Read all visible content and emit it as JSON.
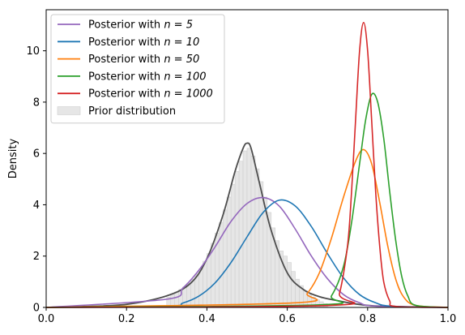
{
  "chart_data": {
    "type": "line",
    "title": "",
    "xlabel": "",
    "ylabel": "Density",
    "xlim": [
      0.0,
      1.0
    ],
    "ylim": [
      0,
      11.6
    ],
    "x_ticks": [
      "0.0",
      "0.2",
      "0.4",
      "0.6",
      "0.8",
      "1.0"
    ],
    "y_ticks": [
      "0",
      "2",
      "4",
      "6",
      "8",
      "10"
    ],
    "grid": false,
    "legend_position": "top-left",
    "series": [
      {
        "name": "Posterior with n = 5",
        "legend_prefix": "Posterior with ",
        "legend_math": "n = 5",
        "color": "#9467bd",
        "x": [
          0.3,
          0.34,
          0.38,
          0.42,
          0.46,
          0.5,
          0.54,
          0.58,
          0.62,
          0.66,
          0.7,
          0.74,
          0.78,
          0.82
        ],
        "y": [
          0.32,
          0.75,
          1.45,
          2.35,
          3.35,
          4.05,
          4.28,
          3.95,
          3.05,
          2.0,
          1.12,
          0.5,
          0.18,
          0.05
        ]
      },
      {
        "name": "Posterior with n = 10",
        "legend_prefix": "Posterior with ",
        "legend_math": "n = 10",
        "color": "#1f77b4",
        "x": [
          0.3,
          0.34,
          0.38,
          0.42,
          0.46,
          0.5,
          0.54,
          0.58,
          0.62,
          0.66,
          0.7,
          0.74,
          0.78,
          0.82,
          0.86
        ],
        "y": [
          0.05,
          0.17,
          0.44,
          0.95,
          1.75,
          2.75,
          3.7,
          4.18,
          3.95,
          3.15,
          2.1,
          1.15,
          0.5,
          0.18,
          0.05
        ]
      },
      {
        "name": "Posterior with n = 50",
        "legend_prefix": "Posterior with ",
        "legend_math": "n = 50",
        "color": "#ff7f0e",
        "x": [
          0.62,
          0.65,
          0.68,
          0.71,
          0.74,
          0.77,
          0.79,
          0.81,
          0.83,
          0.85,
          0.87,
          0.89,
          0.92
        ],
        "y": [
          0.18,
          0.55,
          1.35,
          2.7,
          4.3,
          5.7,
          6.15,
          5.6,
          4.1,
          2.4,
          1.1,
          0.4,
          0.08
        ]
      },
      {
        "name": "Posterior with n = 100",
        "legend_prefix": "Posterior with ",
        "legend_math": "n = 100",
        "color": "#2ca02c",
        "x": [
          0.68,
          0.71,
          0.74,
          0.76,
          0.78,
          0.795,
          0.81,
          0.825,
          0.84,
          0.855,
          0.87,
          0.885,
          0.9,
          0.92
        ],
        "y": [
          0.1,
          0.45,
          1.6,
          3.3,
          5.6,
          7.3,
          8.3,
          8.0,
          6.6,
          4.5,
          2.6,
          1.2,
          0.45,
          0.08
        ]
      },
      {
        "name": "Posterior with n = 1000",
        "legend_prefix": "Posterior with ",
        "legend_math": "n = 1000",
        "color": "#d62728",
        "x": [
          0.71,
          0.73,
          0.75,
          0.76,
          0.77,
          0.78,
          0.79,
          0.8,
          0.81,
          0.82,
          0.83,
          0.84,
          0.855,
          0.87
        ],
        "y": [
          0.08,
          0.55,
          2.4,
          4.5,
          7.3,
          10.0,
          11.1,
          10.0,
          7.3,
          4.5,
          2.4,
          1.0,
          0.25,
          0.04
        ]
      }
    ],
    "prior_kde": {
      "color": "#4d4d4d",
      "x": [
        0.0,
        0.1,
        0.2,
        0.3,
        0.36,
        0.4,
        0.44,
        0.47,
        0.49,
        0.5,
        0.51,
        0.53,
        0.56,
        0.6,
        0.64,
        0.68,
        0.72,
        0.76,
        0.8,
        0.85,
        0.9,
        1.0
      ],
      "y": [
        0.0,
        0.04,
        0.12,
        0.45,
        0.95,
        1.9,
        3.6,
        5.3,
        6.2,
        6.4,
        6.2,
        4.9,
        3.0,
        1.35,
        0.7,
        0.42,
        0.28,
        0.16,
        0.08,
        0.04,
        0.02,
        0.0
      ]
    },
    "prior_histogram": {
      "name": "Prior distribution",
      "color": "#e6e6e6",
      "edge_color": "#cfcfcf",
      "bin_width": 0.01,
      "bins": [
        {
          "x": 0.3,
          "y": 0.4
        },
        {
          "x": 0.31,
          "y": 0.5
        },
        {
          "x": 0.32,
          "y": 0.6
        },
        {
          "x": 0.33,
          "y": 0.7
        },
        {
          "x": 0.34,
          "y": 0.8
        },
        {
          "x": 0.35,
          "y": 0.95
        },
        {
          "x": 0.36,
          "y": 1.1
        },
        {
          "x": 0.37,
          "y": 1.3
        },
        {
          "x": 0.38,
          "y": 1.5
        },
        {
          "x": 0.39,
          "y": 1.8
        },
        {
          "x": 0.4,
          "y": 2.1
        },
        {
          "x": 0.41,
          "y": 2.5
        },
        {
          "x": 0.42,
          "y": 2.9
        },
        {
          "x": 0.43,
          "y": 3.3
        },
        {
          "x": 0.44,
          "y": 3.8
        },
        {
          "x": 0.45,
          "y": 4.3
        },
        {
          "x": 0.46,
          "y": 4.8
        },
        {
          "x": 0.47,
          "y": 5.3
        },
        {
          "x": 0.48,
          "y": 5.7
        },
        {
          "x": 0.49,
          "y": 6.1
        },
        {
          "x": 0.5,
          "y": 6.2
        },
        {
          "x": 0.51,
          "y": 5.9
        },
        {
          "x": 0.52,
          "y": 5.4
        },
        {
          "x": 0.53,
          "y": 4.9
        },
        {
          "x": 0.54,
          "y": 4.3
        },
        {
          "x": 0.55,
          "y": 3.7
        },
        {
          "x": 0.56,
          "y": 3.1
        },
        {
          "x": 0.57,
          "y": 2.6
        },
        {
          "x": 0.58,
          "y": 2.2
        },
        {
          "x": 0.59,
          "y": 2.0
        },
        {
          "x": 0.6,
          "y": 1.75
        },
        {
          "x": 0.61,
          "y": 1.4
        },
        {
          "x": 0.62,
          "y": 1.1
        },
        {
          "x": 0.63,
          "y": 0.85
        },
        {
          "x": 0.64,
          "y": 0.65
        },
        {
          "x": 0.65,
          "y": 0.5
        },
        {
          "x": 0.66,
          "y": 0.4
        },
        {
          "x": 0.67,
          "y": 0.3
        },
        {
          "x": 0.68,
          "y": 0.22
        },
        {
          "x": 0.69,
          "y": 0.15
        }
      ]
    }
  }
}
